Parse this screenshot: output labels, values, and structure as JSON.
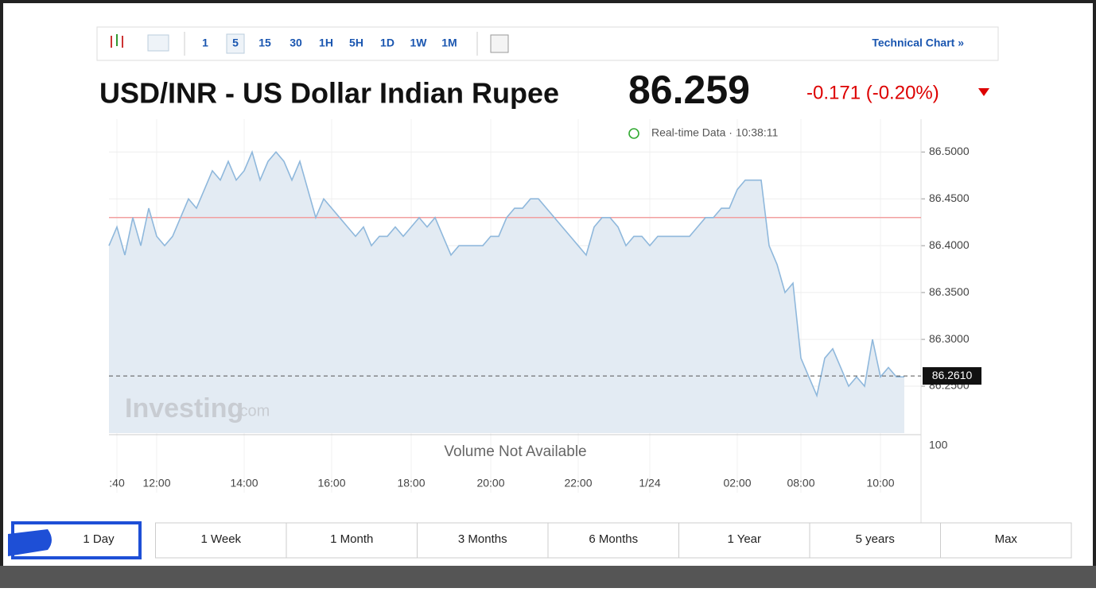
{
  "toolbar": {
    "intervals": [
      "1",
      "5",
      "15",
      "30",
      "1H",
      "5H",
      "1D",
      "1W",
      "1M"
    ],
    "selected": 1,
    "link": "Technical Chart »"
  },
  "header": {
    "title": "USD/INR - US Dollar Indian Rupee",
    "price": "86.259",
    "change": "-0.171 (-0.20%)",
    "status": "Real-time Data · 10:38:11"
  },
  "watermark": {
    "brand": "Investing",
    "suffix": ".com"
  },
  "volume": {
    "message": "Volume Not Available",
    "axis_label": "100"
  },
  "chart_data": {
    "type": "line",
    "color": "#8fb8dc",
    "area_color": "#e3ebf3",
    "categories": [
      null,
      ":40",
      null,
      null,
      null,
      null,
      "12:00",
      null,
      null,
      null,
      null,
      null,
      null,
      null,
      null,
      null,
      null,
      "14:00",
      null,
      null,
      null,
      null,
      null,
      null,
      null,
      null,
      null,
      null,
      "16:00",
      null,
      null,
      null,
      null,
      null,
      null,
      null,
      null,
      null,
      "18:00",
      null,
      null,
      null,
      null,
      null,
      null,
      null,
      null,
      null,
      "20:00",
      null,
      null,
      null,
      null,
      null,
      null,
      null,
      null,
      null,
      null,
      "22:00",
      null,
      null,
      null,
      null,
      null,
      null,
      null,
      null,
      "1/24",
      null,
      null,
      null,
      null,
      null,
      null,
      null,
      null,
      null,
      null,
      "02:00",
      null,
      null,
      null,
      null,
      null,
      null,
      null,
      "08:00",
      null,
      null,
      null,
      null,
      null,
      null,
      null,
      null,
      null,
      "10:00",
      null,
      null,
      null
    ],
    "values": [
      86.4,
      86.42,
      86.39,
      86.43,
      86.4,
      86.44,
      86.41,
      86.4,
      86.41,
      86.43,
      86.45,
      86.44,
      86.46,
      86.48,
      86.47,
      86.49,
      86.47,
      86.48,
      86.5,
      86.47,
      86.49,
      86.5,
      86.49,
      86.47,
      86.49,
      86.46,
      86.43,
      86.45,
      86.44,
      86.43,
      86.42,
      86.41,
      86.42,
      86.4,
      86.41,
      86.41,
      86.42,
      86.41,
      86.42,
      86.43,
      86.42,
      86.43,
      86.41,
      86.39,
      86.4,
      86.4,
      86.4,
      86.4,
      86.41,
      86.41,
      86.43,
      86.44,
      86.44,
      86.45,
      86.45,
      86.44,
      86.43,
      86.42,
      86.41,
      86.4,
      86.39,
      86.42,
      86.43,
      86.43,
      86.42,
      86.4,
      86.41,
      86.41,
      86.4,
      86.41,
      86.41,
      86.41,
      86.41,
      86.41,
      86.42,
      86.43,
      86.43,
      86.44,
      86.44,
      86.46,
      86.47,
      86.47,
      86.47,
      86.4,
      86.38,
      86.35,
      86.36,
      86.28,
      86.26,
      86.24,
      86.28,
      86.29,
      86.27,
      86.25,
      86.26,
      86.25,
      86.3,
      86.26,
      86.27,
      86.26,
      86.26
    ],
    "ylim": [
      86.2,
      86.535
    ],
    "yticks": [
      {
        "value": 86.25,
        "label": "86.2500"
      },
      {
        "value": 86.3,
        "label": "86.3000"
      },
      {
        "value": 86.35,
        "label": "86.3500"
      },
      {
        "value": 86.4,
        "label": "86.4000"
      },
      {
        "value": 86.45,
        "label": "86.4500"
      },
      {
        "value": 86.5,
        "label": "86.5000"
      }
    ],
    "grid": true,
    "reference_line": {
      "value": 86.43,
      "color": "#f2a0a0"
    },
    "last_value": {
      "value": 86.261,
      "label": "86.2610"
    }
  },
  "ranges": {
    "buttons": [
      "1 Day",
      "1 Week",
      "1 Month",
      "3 Months",
      "6 Months",
      "1 Year",
      "5 years",
      "Max"
    ],
    "selected": 0
  }
}
